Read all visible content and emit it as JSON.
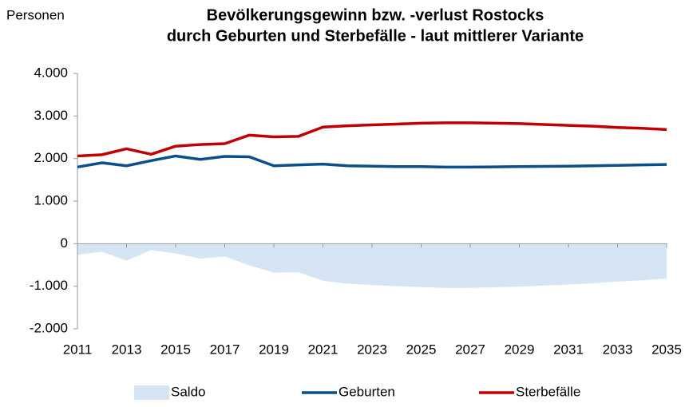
{
  "chart_data": {
    "type": "line",
    "title": [
      "Bevölkerungsgewinn bzw. -verlust Rostocks",
      "durch Geburten und Sterbefälle - laut mittlerer Variante"
    ],
    "y_label": "Personen",
    "x": [
      2011,
      2012,
      2013,
      2014,
      2015,
      2016,
      2017,
      2018,
      2019,
      2020,
      2021,
      2022,
      2023,
      2024,
      2025,
      2026,
      2027,
      2028,
      2029,
      2030,
      2031,
      2032,
      2033,
      2034,
      2035
    ],
    "xlim": [
      2011,
      2035
    ],
    "xticks": [
      2011,
      2013,
      2015,
      2017,
      2019,
      2021,
      2023,
      2025,
      2027,
      2029,
      2031,
      2033,
      2035
    ],
    "ylim": [
      -2000,
      4000
    ],
    "yticks": [
      {
        "value": -2000,
        "label": "-2.000"
      },
      {
        "value": -1000,
        "label": "-1.000"
      },
      0,
      {
        "value": 1000,
        "label": "1.000"
      },
      {
        "value": 2000,
        "label": "2.000"
      },
      {
        "value": 3000,
        "label": "3.000"
      },
      {
        "value": 4000,
        "label": "4.000"
      }
    ],
    "legend": "bottom",
    "series": [
      {
        "name": "Saldo",
        "kind": "area",
        "color": "#d5e5f3",
        "values": [
          -260,
          -190,
          -400,
          -150,
          -230,
          -350,
          -300,
          -510,
          -680,
          -670,
          -870,
          -940,
          -970,
          -1000,
          -1020,
          -1040,
          -1040,
          -1025,
          -1010,
          -985,
          -960,
          -930,
          -890,
          -860,
          -820
        ]
      },
      {
        "name": "Geburten",
        "kind": "line",
        "color": "#0b4f8a",
        "values": [
          1800,
          1900,
          1830,
          1950,
          2060,
          1980,
          2050,
          2040,
          1830,
          1850,
          1870,
          1830,
          1820,
          1810,
          1810,
          1800,
          1800,
          1805,
          1810,
          1815,
          1820,
          1830,
          1840,
          1850,
          1860
        ]
      },
      {
        "name": "Sterbefälle",
        "kind": "line",
        "color": "#c00000",
        "values": [
          2060,
          2090,
          2230,
          2100,
          2290,
          2330,
          2350,
          2550,
          2510,
          2520,
          2740,
          2770,
          2790,
          2810,
          2830,
          2840,
          2840,
          2830,
          2820,
          2800,
          2780,
          2760,
          2730,
          2710,
          2680
        ]
      }
    ]
  }
}
